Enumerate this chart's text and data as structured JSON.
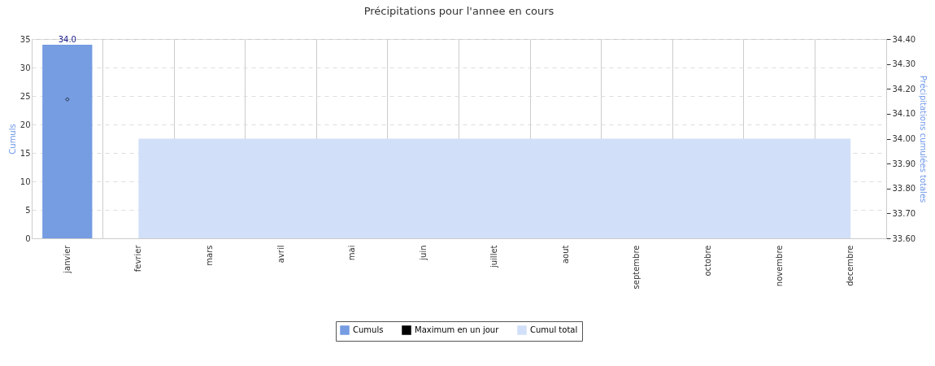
{
  "chart_data": {
    "type": "bar",
    "title": "Précipitations pour l'annee en cours",
    "categories": [
      "janvier",
      "fevrier",
      "mars",
      "avril",
      "mai",
      "juin",
      "juillet",
      "aout",
      "septembre",
      "octobre",
      "novembre",
      "decembre"
    ],
    "ylabel": "Cumuls",
    "y2label": "Précipitations cumulées totales",
    "ylim": [
      0,
      35
    ],
    "yticks": [
      0,
      5,
      10,
      15,
      20,
      25,
      30,
      35
    ],
    "y2lim": [
      33.6,
      34.4
    ],
    "y2ticks": [
      {
        "value": 33.6,
        "label": "33.60"
      },
      {
        "value": 33.7,
        "label": "33.70"
      },
      {
        "value": 33.8,
        "label": "33.80"
      },
      {
        "value": 33.9,
        "label": "33.90"
      },
      {
        "value": 34.0,
        "label": "34.00"
      },
      {
        "value": 34.1,
        "label": "34.10"
      },
      {
        "value": 34.2,
        "label": "34.20"
      },
      {
        "value": 34.3,
        "label": "34.30"
      },
      {
        "value": 34.4,
        "label": "34.40"
      }
    ],
    "series": [
      {
        "name": "Cumuls",
        "color": "#769ce2",
        "values": [
          34.0,
          null,
          null,
          null,
          null,
          null,
          null,
          null,
          null,
          null,
          null,
          null
        ],
        "value_labels": [
          "34.0",
          null,
          null,
          null,
          null,
          null,
          null,
          null,
          null,
          null,
          null,
          null
        ]
      },
      {
        "name": "Maximum en un jour",
        "type": "scatter",
        "color": "#000000",
        "marker": "diamond",
        "values": [
          24.4,
          null,
          null,
          null,
          null,
          null,
          null,
          null,
          null,
          null,
          null,
          null
        ]
      },
      {
        "name": "Cumul total",
        "type": "area",
        "axis": "y2",
        "color": "#d2dff8",
        "values": [
          null,
          34,
          34,
          34,
          34,
          34,
          34,
          34,
          34,
          34,
          34,
          34
        ]
      }
    ],
    "grid": true,
    "legend": "bottom"
  }
}
